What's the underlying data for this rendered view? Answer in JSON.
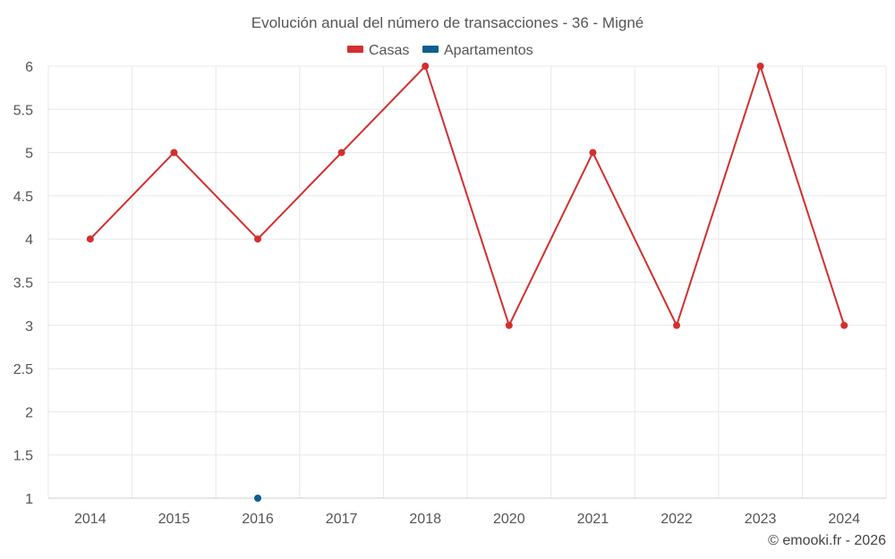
{
  "chart_data": {
    "type": "line",
    "title": "Evolución anual del número de transacciones - 36 - Migné",
    "categories": [
      "2014",
      "2015",
      "2016",
      "2017",
      "2018",
      "2020",
      "2021",
      "2022",
      "2023",
      "2024"
    ],
    "series": [
      {
        "name": "Casas",
        "color": "#d32f2f",
        "values": [
          4,
          5,
          4,
          5,
          6,
          3,
          5,
          3,
          6,
          3
        ]
      },
      {
        "name": "Apartamentos",
        "color": "#0d5e91",
        "values": [
          null,
          null,
          1,
          null,
          null,
          null,
          null,
          null,
          null,
          null
        ]
      }
    ],
    "yticks": [
      "1",
      "1.5",
      "2",
      "2.5",
      "3",
      "3.5",
      "4",
      "4.5",
      "5",
      "5.5",
      "6"
    ],
    "ylim": [
      1,
      6
    ],
    "xlabel": "",
    "ylabel": "",
    "grid": true,
    "legend_position": "top-center"
  },
  "credit": "© emooki.fr - 2026"
}
